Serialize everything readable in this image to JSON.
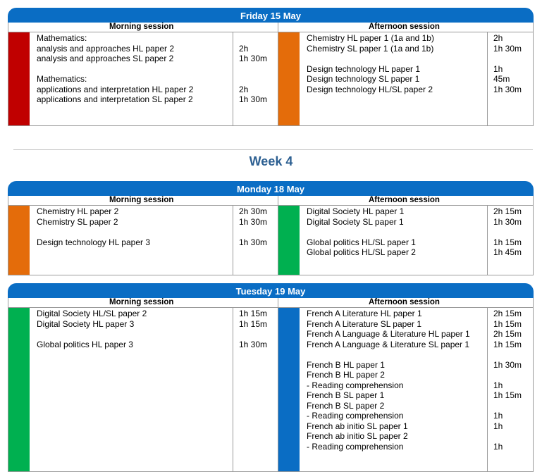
{
  "colors": {
    "header_blue": "#0a6dc4",
    "red": "#c00000",
    "orange": "#e46c0a",
    "green": "#00b050",
    "blue": "#0a6dc4"
  },
  "week_title": "Week 4",
  "days": [
    {
      "title": "Friday 15 May",
      "morning": {
        "label": "Morning session",
        "color": "red",
        "rows": [
          {
            "subject": "Mathematics:",
            "duration": ""
          },
          {
            "subject": "analysis and approaches HL paper 2",
            "duration": "2h"
          },
          {
            "subject": "analysis and approaches SL paper 2",
            "duration": "1h 30m"
          },
          {
            "subject": "",
            "duration": ""
          },
          {
            "subject": "Mathematics:",
            "duration": ""
          },
          {
            "subject": "applications and interpretation HL paper 2",
            "duration": "2h"
          },
          {
            "subject": "applications and interpretation SL paper 2",
            "duration": "1h 30m"
          }
        ]
      },
      "afternoon": {
        "label": "Afternoon session",
        "color": "orange",
        "rows": [
          {
            "subject": "Chemistry HL paper 1 (1a and 1b)",
            "duration": "2h"
          },
          {
            "subject": "Chemistry SL paper 1 (1a and 1b)",
            "duration": "1h 30m"
          },
          {
            "subject": "",
            "duration": ""
          },
          {
            "subject": "Design technology HL paper 1",
            "duration": "1h"
          },
          {
            "subject": "Design technology SL paper 1",
            "duration": "45m"
          },
          {
            "subject": "Design technology HL/SL paper 2",
            "duration": "1h 30m"
          }
        ]
      }
    },
    {
      "title": "Monday 18 May",
      "morning": {
        "label": "Morning session",
        "color": "orange",
        "rows": [
          {
            "subject": "Chemistry HL paper 2",
            "duration": "2h 30m"
          },
          {
            "subject": "Chemistry SL paper 2",
            "duration": "1h 30m"
          },
          {
            "subject": "",
            "duration": ""
          },
          {
            "subject": "Design technology HL paper 3",
            "duration": "1h 30m"
          }
        ]
      },
      "afternoon": {
        "label": "Afternoon session",
        "color": "green",
        "rows": [
          {
            "subject": "Digital Society HL paper 1",
            "duration": "2h 15m"
          },
          {
            "subject": "Digital Society SL paper 1",
            "duration": "1h 30m"
          },
          {
            "subject": "",
            "duration": ""
          },
          {
            "subject": "Global politics HL/SL paper 1",
            "duration": "1h 15m"
          },
          {
            "subject": "Global politics HL/SL paper 2",
            "duration": "1h 45m"
          }
        ]
      }
    },
    {
      "title": "Tuesday 19 May",
      "morning": {
        "label": "Morning session",
        "color": "green",
        "rows": [
          {
            "subject": "Digital Society HL/SL paper 2",
            "duration": "1h 15m"
          },
          {
            "subject": "Digital Society HL paper 3",
            "duration": "1h 15m"
          },
          {
            "subject": "",
            "duration": ""
          },
          {
            "subject": "Global politics HL paper 3",
            "duration": "1h 30m"
          }
        ]
      },
      "afternoon": {
        "label": "Afternoon session",
        "color": "blue",
        "rows": [
          {
            "subject": "French A Literature HL paper 1",
            "duration": "2h 15m"
          },
          {
            "subject": "French A Literature SL paper 1",
            "duration": "1h 15m"
          },
          {
            "subject": "French A Language & Literature HL paper 1",
            "duration": "2h 15m"
          },
          {
            "subject": "French A Language & Literature SL paper 1",
            "duration": "1h 15m"
          },
          {
            "subject": "",
            "duration": ""
          },
          {
            "subject": "French B HL paper 1",
            "duration": "1h 30m"
          },
          {
            "subject": "French B HL paper 2",
            "duration": ""
          },
          {
            "subject": "- Reading comprehension",
            "duration": "1h"
          },
          {
            "subject": "French B SL paper 1",
            "duration": "1h 15m"
          },
          {
            "subject": "French B SL paper 2",
            "duration": ""
          },
          {
            "subject": "- Reading comprehension",
            "duration": "1h"
          },
          {
            "subject": "French ab initio SL paper 1",
            "duration": "1h"
          },
          {
            "subject": "French ab initio SL paper 2",
            "duration": ""
          },
          {
            "subject": "- Reading comprehension",
            "duration": "1h"
          }
        ]
      }
    }
  ]
}
